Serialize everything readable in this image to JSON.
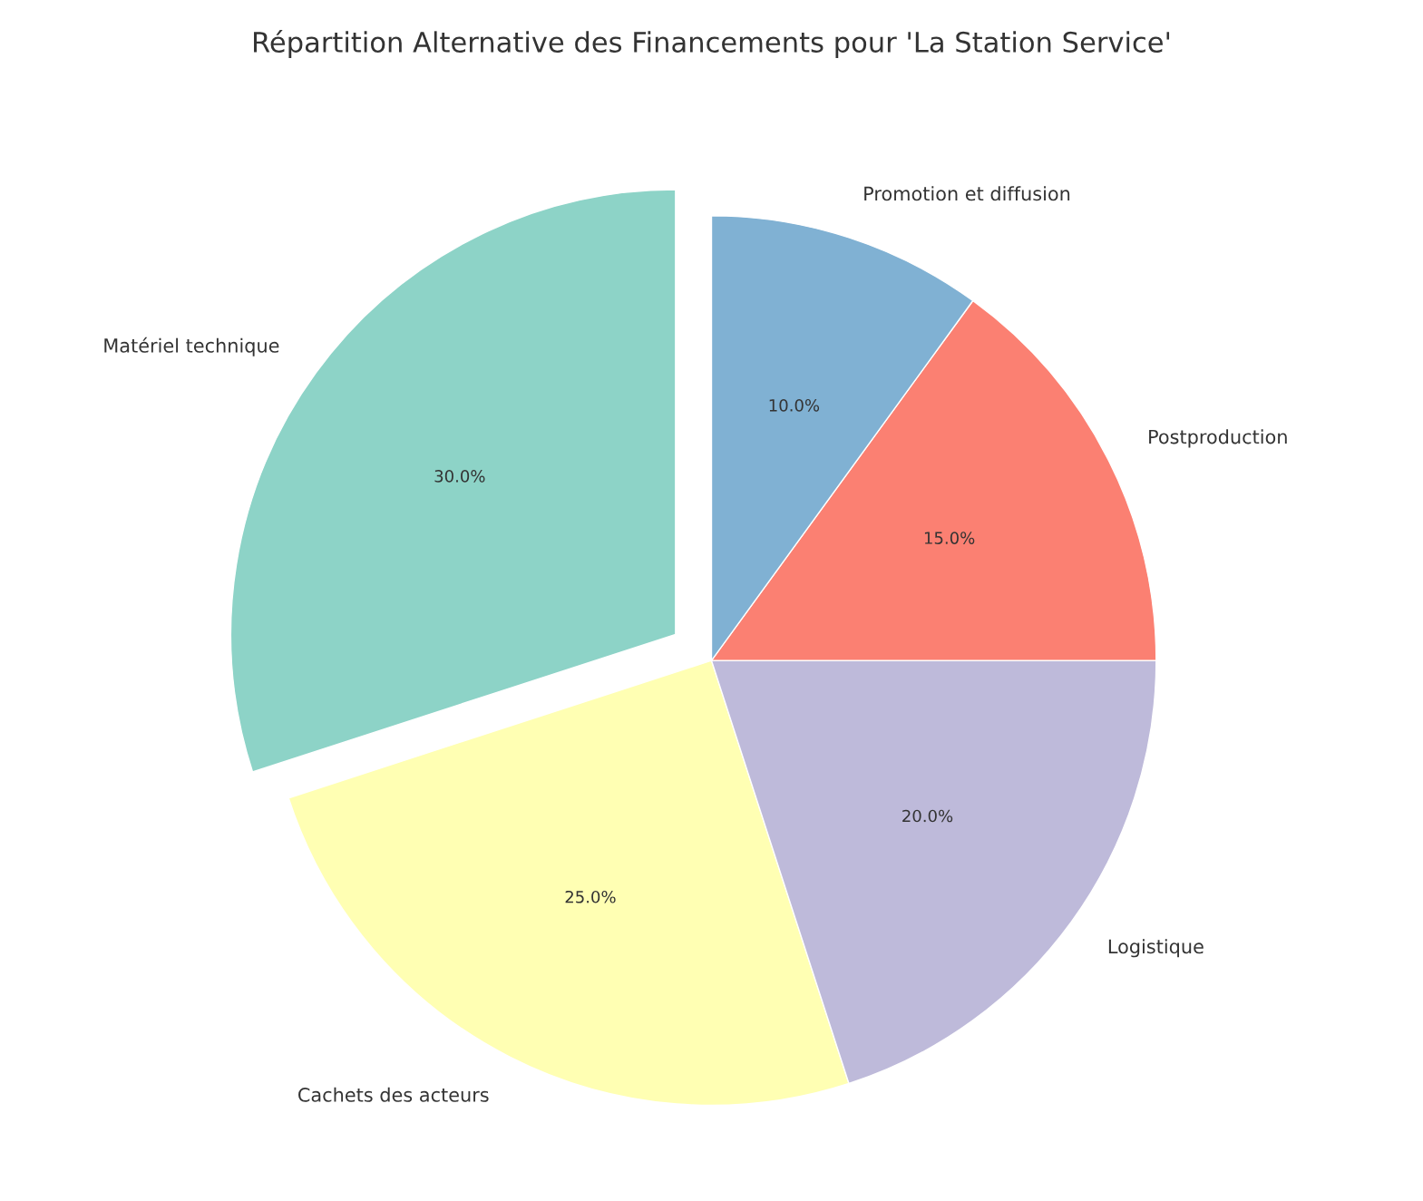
{
  "chart_data": {
    "type": "pie",
    "title": "Répartition Alternative des Financements pour 'La Station Service'",
    "categories": [
      "Matériel technique",
      "Cachets des acteurs",
      "Logistique",
      "Postproduction",
      "Promotion et diffusion"
    ],
    "values": [
      30,
      25,
      20,
      15,
      10
    ],
    "colors": [
      "#8dd3c7",
      "#ffffb3",
      "#bebada",
      "#fb8072",
      "#80b1d3"
    ],
    "value_labels": [
      "30.0%",
      "25.0%",
      "20.0%",
      "15.0%",
      "10.0%"
    ]
  }
}
